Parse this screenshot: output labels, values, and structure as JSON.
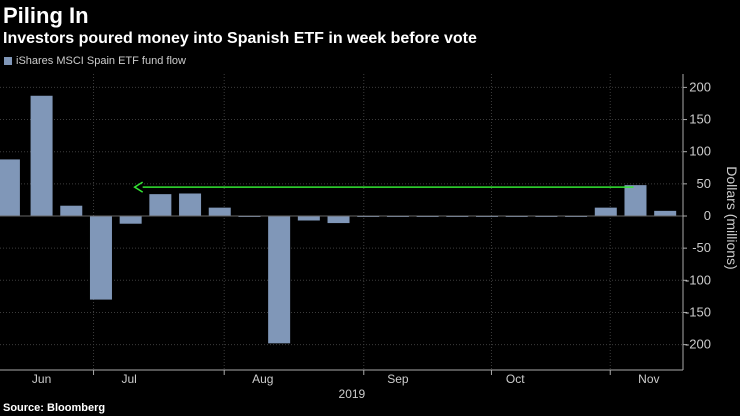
{
  "title": "Piling In",
  "subtitle": "Investors poured money into Spanish ETF in week before vote",
  "source": "Source: Bloomberg",
  "colors": {
    "bar": "#8097b8",
    "arrow": "#33e633",
    "grid": "#3c3c3c",
    "axis": "#aaaaaa",
    "text": "#cccccc"
  },
  "chart_data": {
    "type": "bar",
    "legend": [
      "iShares MSCI Spain ETF fund flow"
    ],
    "ylabel": "Dollars (millions)",
    "ylim": [
      -220,
      220
    ],
    "yticks": [
      200,
      150,
      100,
      50,
      0,
      -50,
      -100,
      -150,
      -200
    ],
    "xlim": [
      0,
      23
    ],
    "month_labels": [
      {
        "label": "Jun",
        "x": 1.4
      },
      {
        "label": "Jul",
        "x": 4.35
      },
      {
        "label": "Aug",
        "x": 8.85
      },
      {
        "label": "Sep",
        "x": 13.4
      },
      {
        "label": "Oct",
        "x": 17.35
      },
      {
        "label": "Nov",
        "x": 21.85
      }
    ],
    "year_label": {
      "label": "2019",
      "x": 11.85
    },
    "bars": [
      {
        "x": 0.3,
        "value": 88
      },
      {
        "x": 1.4,
        "value": 187
      },
      {
        "x": 2.4,
        "value": 16
      },
      {
        "x": 3.4,
        "value": -130
      },
      {
        "x": 4.4,
        "value": -12
      },
      {
        "x": 5.4,
        "value": 34
      },
      {
        "x": 6.4,
        "value": 35
      },
      {
        "x": 7.4,
        "value": 13
      },
      {
        "x": 8.4,
        "value": -1
      },
      {
        "x": 9.4,
        "value": -198
      },
      {
        "x": 10.4,
        "value": -7
      },
      {
        "x": 11.4,
        "value": -11
      },
      {
        "x": 12.4,
        "value": -1
      },
      {
        "x": 13.4,
        "value": -1
      },
      {
        "x": 14.4,
        "value": -1
      },
      {
        "x": 15.4,
        "value": -1
      },
      {
        "x": 16.4,
        "value": -1
      },
      {
        "x": 17.4,
        "value": -1
      },
      {
        "x": 18.4,
        "value": -1
      },
      {
        "x": 19.4,
        "value": -1
      },
      {
        "x": 20.4,
        "value": 13
      },
      {
        "x": 21.4,
        "value": 48
      },
      {
        "x": 22.4,
        "value": 8
      }
    ],
    "arrow": {
      "from_x": 21.4,
      "to_x": 4.4,
      "value": 48
    }
  }
}
